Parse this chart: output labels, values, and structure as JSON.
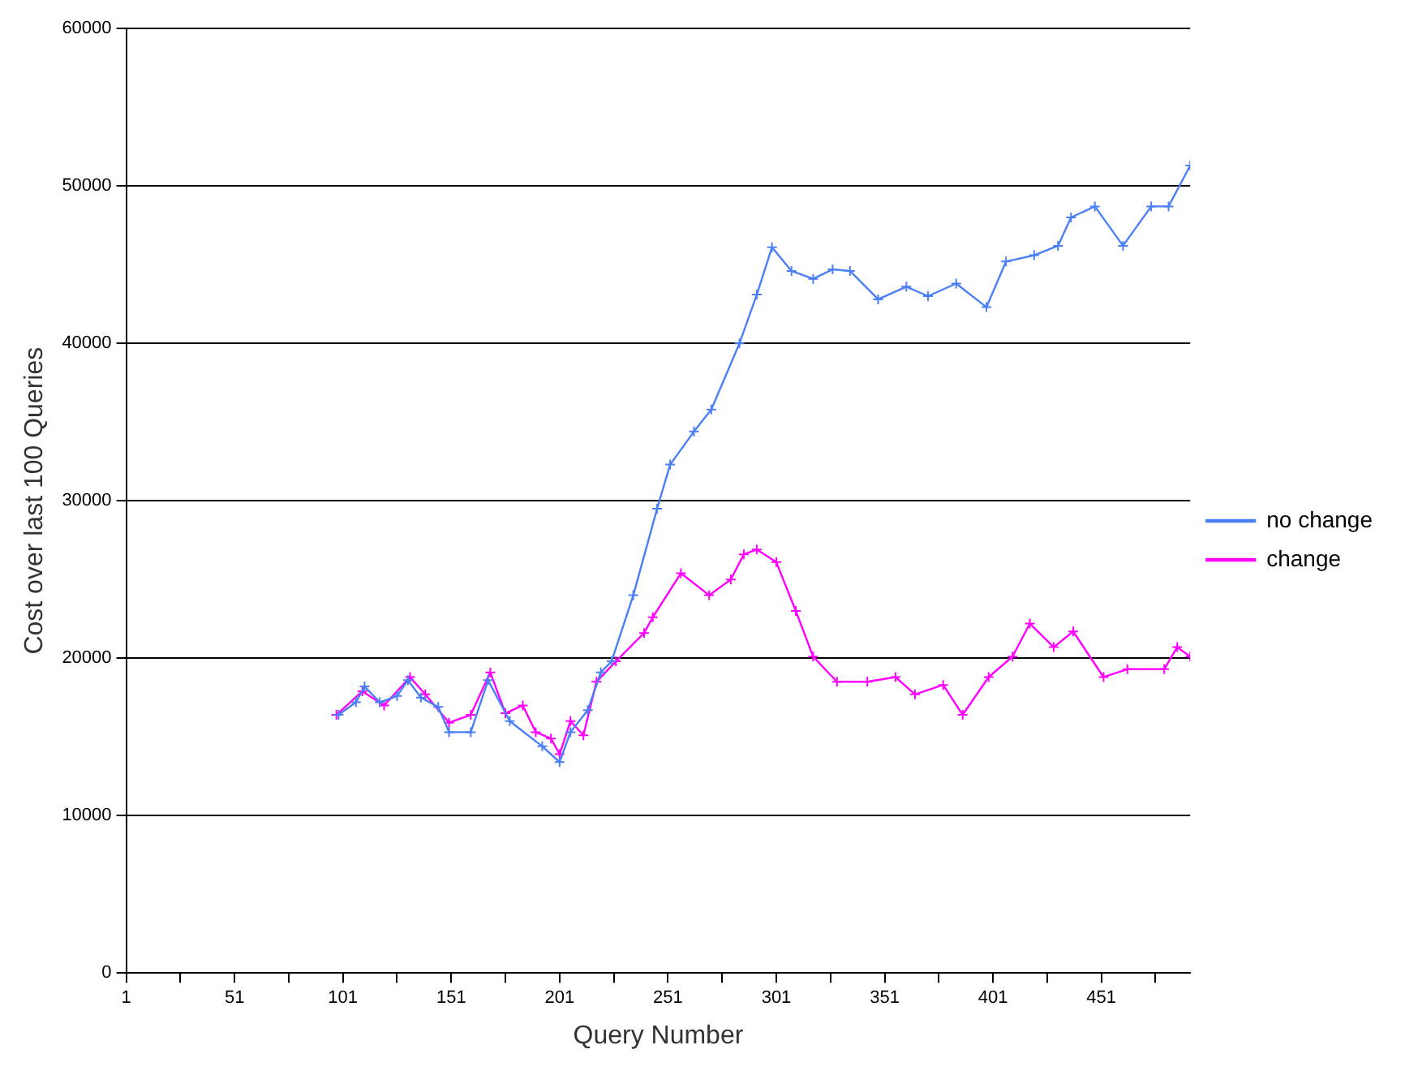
{
  "chart_data": {
    "type": "line",
    "xlabel": "Query Number",
    "ylabel": "Cost over last 100 Queries",
    "xlim": [
      1,
      492
    ],
    "xticks": [
      1,
      {
        "value": 26,
        "label": null
      },
      51,
      {
        "value": 76,
        "label": null
      },
      101,
      {
        "value": 126,
        "label": null
      },
      151,
      {
        "value": 176,
        "label": null
      },
      201,
      {
        "value": 226,
        "label": null
      },
      251,
      {
        "value": 276,
        "label": null
      },
      301,
      {
        "value": 326,
        "label": null
      },
      351,
      {
        "value": 376,
        "label": null
      },
      401,
      {
        "value": 426,
        "label": null
      },
      451,
      {
        "value": 476,
        "label": null
      }
    ],
    "ylim": [
      0,
      60000
    ],
    "yticks": [
      0,
      10000,
      20000,
      30000,
      40000,
      50000,
      60000
    ],
    "grid": "y",
    "legend": "right",
    "marker": "cross",
    "line_style": "solid",
    "series": [
      {
        "name": "no change",
        "color": "#4a7ff5",
        "x": [
          99,
          107,
          111,
          118,
          126,
          131,
          137,
          145,
          150,
          160,
          168,
          178,
          193,
          201,
          206,
          214,
          220,
          225,
          235,
          246,
          252,
          263,
          271,
          284,
          292,
          299,
          308,
          318,
          327,
          335,
          348,
          361,
          371,
          384,
          398,
          407,
          420,
          431,
          437,
          448,
          461,
          474,
          482,
          492
        ],
        "values": [
          16400,
          17200,
          18200,
          17200,
          17600,
          18600,
          17500,
          16900,
          15300,
          15300,
          18600,
          16000,
          14400,
          13400,
          15300,
          16700,
          19100,
          19800,
          24000,
          29500,
          32300,
          34400,
          35800,
          40000,
          43100,
          46100,
          44600,
          44100,
          44700,
          44600,
          42800,
          43600,
          43000,
          43800,
          42300,
          45200,
          45600,
          46200,
          48000,
          48700,
          46200,
          48700,
          48700,
          51300
        ]
      },
      {
        "name": "change",
        "color": "#ff00ff",
        "x": [
          98,
          110,
          120,
          132,
          139,
          150,
          160,
          169,
          176,
          184,
          190,
          197,
          201,
          206,
          212,
          218,
          227,
          240,
          244,
          257,
          270,
          280,
          286,
          292,
          301,
          310,
          318,
          329,
          343,
          356,
          365,
          378,
          387,
          399,
          410,
          418,
          429,
          438,
          452,
          463,
          480,
          486,
          492
        ],
        "values": [
          16400,
          17900,
          17000,
          18800,
          17700,
          15900,
          16400,
          19100,
          16500,
          17000,
          15300,
          14900,
          13900,
          16000,
          15100,
          18500,
          19800,
          21600,
          22600,
          25400,
          24000,
          25000,
          26600,
          26900,
          26100,
          23000,
          20100,
          18500,
          18500,
          18800,
          17700,
          18300,
          16400,
          18800,
          20100,
          22200,
          20700,
          21700,
          18800,
          19300,
          19300,
          20700,
          20100
        ]
      }
    ]
  }
}
